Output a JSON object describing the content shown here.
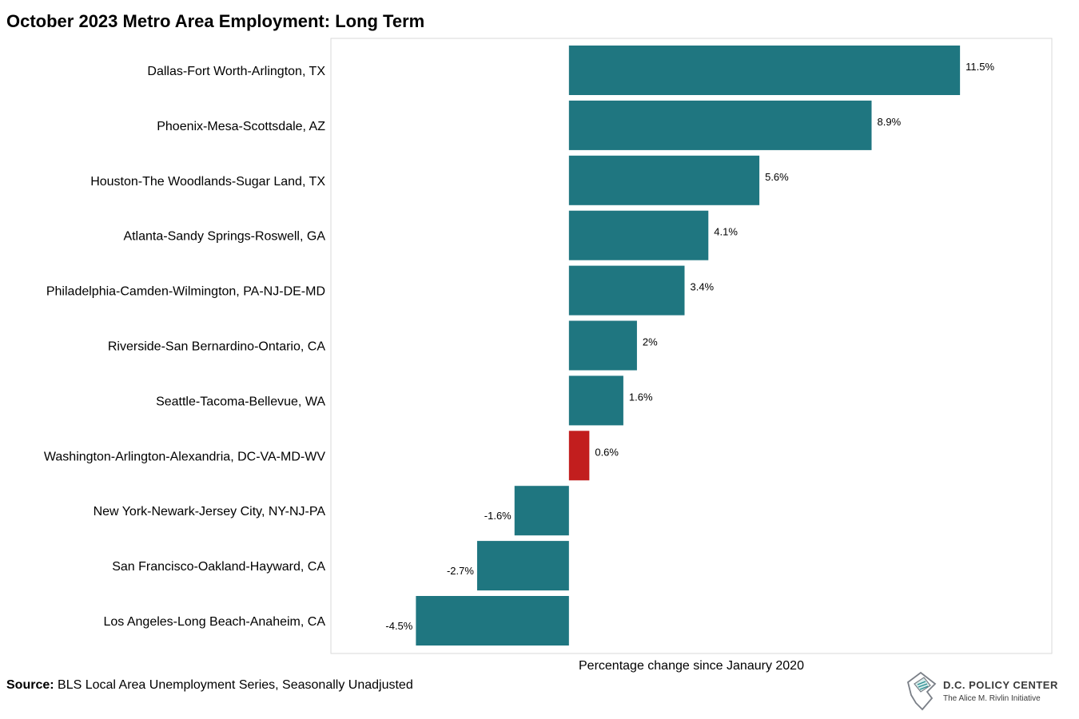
{
  "title": "October 2023 Metro Area Employment: Long Term",
  "source": {
    "label": "Source:",
    "text": " BLS Local Area Unemployment Series, Seasonally Unadjusted"
  },
  "logo": {
    "name": "D.C. POLICY CENTER",
    "subtitle": "The Alice M. Rivlin Initiative",
    "icon": "dc-map-document-icon"
  },
  "colors": {
    "default": "#1f7680",
    "highlight": "#c21e1e",
    "frame": "#d9d9d9"
  },
  "chart_data": {
    "type": "bar",
    "orientation": "horizontal",
    "title": "October 2023 Metro Area Employment: Long Term",
    "xlabel": "Percentage change since Janaury 2020",
    "ylabel": "",
    "xlim": [
      -7.0,
      14.2
    ],
    "grid": false,
    "categories": [
      "Dallas-Fort Worth-Arlington, TX",
      "Phoenix-Mesa-Scottsdale, AZ",
      "Houston-The Woodlands-Sugar Land, TX",
      "Atlanta-Sandy Springs-Roswell, GA",
      "Philadelphia-Camden-Wilmington, PA-NJ-DE-MD",
      "Riverside-San Bernardino-Ontario, CA",
      "Seattle-Tacoma-Bellevue, WA",
      "Washington-Arlington-Alexandria, DC-VA-MD-WV",
      "New York-Newark-Jersey City, NY-NJ-PA",
      "San Francisco-Oakland-Hayward, CA",
      "Los Angeles-Long Beach-Anaheim, CA"
    ],
    "values": [
      11.5,
      8.9,
      5.6,
      4.1,
      3.4,
      2.0,
      1.6,
      0.6,
      -1.6,
      -2.7,
      -4.5
    ],
    "data_labels": [
      "11.5%",
      "8.9%",
      "5.6%",
      "4.1%",
      "3.4%",
      "2%",
      "1.6%",
      "0.6%",
      "-1.6%",
      "-2.7%",
      "-4.5%"
    ],
    "highlight": "Washington-Arlington-Alexandria, DC-VA-MD-WV"
  }
}
